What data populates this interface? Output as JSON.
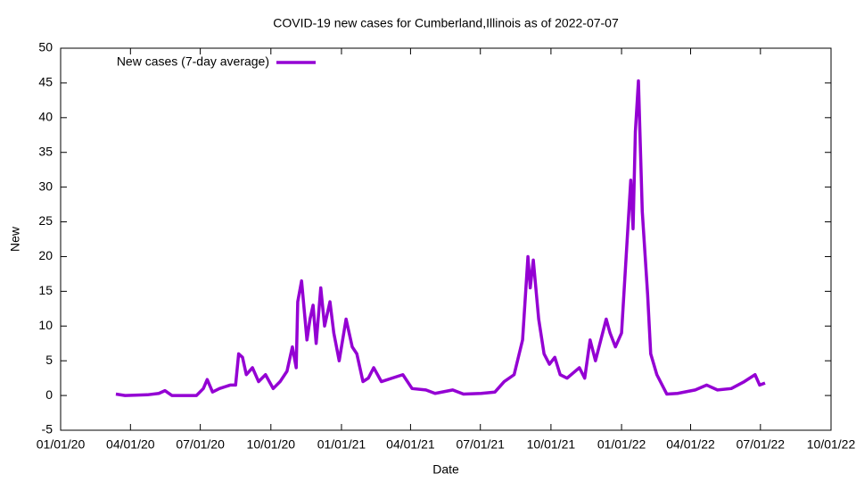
{
  "chart_data": {
    "type": "line",
    "title": "COVID-19 new cases for Cumberland,Illinois as of 2022-07-07",
    "x_label": "Date",
    "y_label": "New",
    "xlim": [
      "2020-01-01",
      "2022-10-01"
    ],
    "xticks": [
      {
        "value": "2020-01-01",
        "label": "01/01/20"
      },
      {
        "value": "2020-04-01",
        "label": "04/01/20"
      },
      {
        "value": "2020-07-01",
        "label": "07/01/20"
      },
      {
        "value": "2020-10-01",
        "label": "10/01/20"
      },
      {
        "value": "2021-01-01",
        "label": "01/01/21"
      },
      {
        "value": "2021-04-01",
        "label": "04/01/21"
      },
      {
        "value": "2021-07-01",
        "label": "07/01/21"
      },
      {
        "value": "2021-10-01",
        "label": "10/01/21"
      },
      {
        "value": "2022-01-01",
        "label": "01/01/22"
      },
      {
        "value": "2022-04-01",
        "label": "04/01/22"
      },
      {
        "value": "2022-07-01",
        "label": "07/01/22"
      },
      {
        "value": "2022-10-01",
        "label": "10/01/22"
      }
    ],
    "ylim": [
      -5,
      50
    ],
    "yticks": [
      -5,
      0,
      5,
      10,
      15,
      20,
      25,
      30,
      35,
      40,
      45,
      50
    ],
    "grid": false,
    "legend": "top-left",
    "x": [
      "2020-03-13",
      "2020-03-25",
      "2020-04-23",
      "2020-05-08",
      "2020-05-16",
      "2020-05-25",
      "2020-06-26",
      "2020-07-05",
      "2020-07-10",
      "2020-07-17",
      "2020-07-26",
      "2020-08-09",
      "2020-08-16",
      "2020-08-20",
      "2020-08-25",
      "2020-08-30",
      "2020-09-07",
      "2020-09-15",
      "2020-09-24",
      "2020-10-04",
      "2020-10-13",
      "2020-10-22",
      "2020-10-29",
      "2020-11-03",
      "2020-11-05",
      "2020-11-10",
      "2020-11-17",
      "2020-11-21",
      "2020-11-25",
      "2020-11-29",
      "2020-12-05",
      "2020-12-10",
      "2020-12-17",
      "2020-12-22",
      "2020-12-29",
      "2021-01-07",
      "2021-01-15",
      "2021-01-21",
      "2021-01-29",
      "2021-02-05",
      "2021-02-12",
      "2021-02-22",
      "2021-03-08",
      "2021-03-22",
      "2021-04-03",
      "2021-04-21",
      "2021-05-03",
      "2021-05-26",
      "2021-06-09",
      "2021-07-02",
      "2021-07-20",
      "2021-08-01",
      "2021-08-14",
      "2021-08-25",
      "2021-09-01",
      "2021-09-04",
      "2021-09-08",
      "2021-09-15",
      "2021-09-22",
      "2021-09-29",
      "2021-10-06",
      "2021-10-13",
      "2021-10-22",
      "2021-11-07",
      "2021-11-14",
      "2021-11-21",
      "2021-11-28",
      "2021-12-12",
      "2021-12-17",
      "2021-12-24",
      "2022-01-01",
      "2022-01-07",
      "2022-01-13",
      "2022-01-16",
      "2022-01-19",
      "2022-01-23",
      "2022-01-28",
      "2022-02-04",
      "2022-02-08",
      "2022-02-16",
      "2022-03-01",
      "2022-03-15",
      "2022-04-07",
      "2022-04-22",
      "2022-05-06",
      "2022-05-24",
      "2022-06-10",
      "2022-06-24",
      "2022-06-30",
      "2022-07-07"
    ],
    "series": [
      {
        "name": "New cases (7-day average)",
        "color": "#9400d3",
        "values": [
          0.2,
          0,
          0.1,
          0.3,
          0.7,
          0,
          0,
          1,
          2.3,
          0.5,
          1,
          1.5,
          1.5,
          6,
          5.5,
          3,
          4,
          2,
          3,
          1,
          2,
          3.5,
          7,
          4,
          13.5,
          16.5,
          8,
          11,
          13,
          7.5,
          15.5,
          10,
          13.5,
          9,
          5,
          11,
          7,
          6,
          2,
          2.5,
          4,
          2,
          2.5,
          3,
          1,
          0.8,
          0.3,
          0.8,
          0.2,
          0.3,
          0.5,
          2,
          3,
          8,
          20,
          15.5,
          19.5,
          11,
          6,
          4.5,
          5.5,
          3,
          2.5,
          4,
          2.5,
          8,
          5,
          11,
          9,
          7,
          9,
          20,
          31,
          24,
          38,
          45.3,
          26.5,
          14.5,
          6,
          3,
          0.2,
          0.3,
          0.8,
          1.5,
          0.8,
          1,
          2,
          3,
          1.5,
          1.8
        ]
      }
    ]
  }
}
